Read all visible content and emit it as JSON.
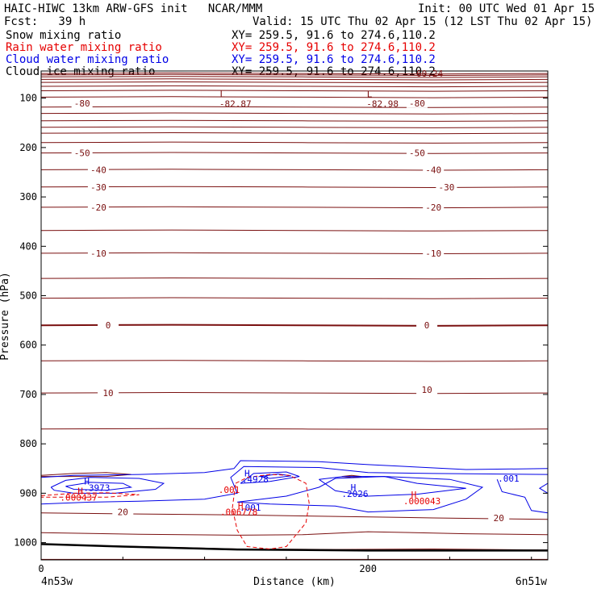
{
  "header": {
    "title": "HAIC-HIWC 13km ARW-GFS init   NCAR/MMM",
    "init": "Init: 00 UTC Wed 01 Apr 15",
    "fcst": "Fcst:   39 h",
    "valid": "Valid: 15 UTC Thu 02 Apr 15 (12 LST Thu 02 Apr 15)"
  },
  "legend": [
    {
      "name": "Snow mixing ratio",
      "xy": "XY= 259.5, 91.6 to 274.6,110.2",
      "color": "#000000"
    },
    {
      "name": "Rain water mixing ratio",
      "xy": "XY= 259.5, 91.6 to 274.6,110.2",
      "color": "#e60000"
    },
    {
      "name": "Cloud water mixing ratio",
      "xy": "XY= 259.5, 91.6 to 274.6,110.2",
      "color": "#0000e6"
    },
    {
      "name": "Cloud ice mixing ratio",
      "xy": "XY= 259.5, 91.6 to 274.6,110.2",
      "color": "#000000"
    }
  ],
  "colors": {
    "temperature": "#7a1010",
    "rain": "#e60000",
    "cloud_water": "#0000e6",
    "axes": "#000000"
  },
  "chart_data": {
    "type": "contour",
    "ylabel": "Pressure (hPa)",
    "xlabel": "Distance (km)",
    "x_ticks": [
      "0",
      "200"
    ],
    "y_ticks": [
      "100",
      "200",
      "300",
      "400",
      "500",
      "600",
      "700",
      "800",
      "900",
      "1000"
    ],
    "xlim": [
      0,
      310
    ],
    "ylim": [
      1035,
      45
    ],
    "endpoint_left": "4n53w",
    "endpoint_right": "6n51w",
    "temperature_labels": [
      {
        "x": 25,
        "p": 110,
        "text": "-80"
      },
      {
        "x": 230,
        "p": 110,
        "text": "-80"
      },
      {
        "x": 25,
        "p": 211,
        "text": "-50"
      },
      {
        "x": 230,
        "p": 211,
        "text": "-50"
      },
      {
        "x": 35,
        "p": 245,
        "text": "-40"
      },
      {
        "x": 240,
        "p": 245,
        "text": "-40"
      },
      {
        "x": 35,
        "p": 280,
        "text": "-30"
      },
      {
        "x": 248,
        "p": 280,
        "text": "-30"
      },
      {
        "x": 35,
        "p": 321,
        "text": "-20"
      },
      {
        "x": 240,
        "p": 321,
        "text": "-20"
      },
      {
        "x": 35,
        "p": 414,
        "text": "-10"
      },
      {
        "x": 240,
        "p": 414,
        "text": "-10"
      },
      {
        "x": 41,
        "p": 560,
        "text": "0"
      },
      {
        "x": 236,
        "p": 560,
        "text": "0"
      },
      {
        "x": 41,
        "p": 697,
        "text": "10"
      },
      {
        "x": 236,
        "p": 690,
        "text": "10"
      },
      {
        "x": 50,
        "p": 938,
        "text": "20"
      },
      {
        "x": 280,
        "p": 950,
        "text": "20"
      }
    ],
    "temperature_minima": [
      {
        "x": 108,
        "p": 75,
        "text": "L",
        "value": "-82.87"
      },
      {
        "x": 198,
        "p": 75,
        "text": "L",
        "value": "-82.98"
      }
    ],
    "top_label": "60.24",
    "cloud_water_labels": [
      {
        "x": 28,
        "p": 876,
        "text": "H"
      },
      {
        "x": 34,
        "p": 889,
        "text": ".3973"
      },
      {
        "x": 126,
        "p": 859,
        "text": "H"
      },
      {
        "x": 131,
        "p": 872,
        "text": ".4928"
      },
      {
        "x": 191,
        "p": 888,
        "text": "H"
      },
      {
        "x": 192,
        "p": 901,
        "text": ".2026"
      },
      {
        "x": 286,
        "p": 870,
        "text": ".001"
      },
      {
        "x": 128,
        "p": 929,
        "text": ".001"
      }
    ],
    "rain_labels": [
      {
        "x": 24,
        "p": 895,
        "text": "H"
      },
      {
        "x": 23,
        "p": 908,
        "text": ".000437"
      },
      {
        "x": 115,
        "p": 893,
        "text": ".001"
      },
      {
        "x": 122,
        "p": 925,
        "text": "H"
      },
      {
        "x": 121,
        "p": 938,
        "text": ".006778"
      },
      {
        "x": 228,
        "p": 903,
        "text": "H"
      },
      {
        "x": 233,
        "p": 916,
        "text": ".000043"
      }
    ]
  }
}
